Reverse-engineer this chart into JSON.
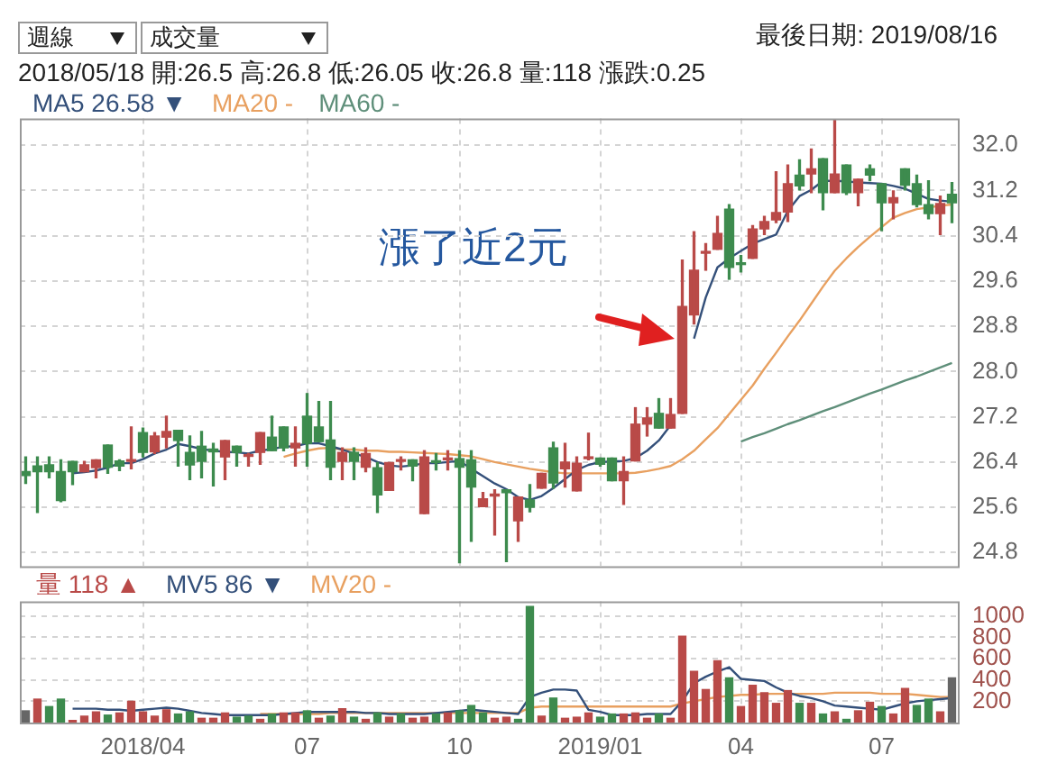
{
  "chart_data": [
    {
      "type": "candlestick",
      "annotations": [
        "週線",
        "成交量",
        "最後日期: 2019/08/16",
        "2018/05/18 開:26.5 高:26.8 低:26.05 收:26.8 量:118 漲跌:0.25",
        "漲了近2元"
      ],
      "categories": [
        null,
        null,
        null,
        null,
        null,
        null,
        null,
        null,
        null,
        null,
        "2018/04",
        null,
        null,
        null,
        null,
        null,
        null,
        null,
        null,
        null,
        null,
        null,
        null,
        null,
        "07",
        null,
        null,
        null,
        null,
        null,
        null,
        null,
        null,
        null,
        null,
        null,
        null,
        "10",
        null,
        null,
        null,
        null,
        null,
        null,
        null,
        null,
        null,
        null,
        null,
        "2019/01",
        null,
        null,
        null,
        null,
        null,
        null,
        null,
        null,
        null,
        null,
        null,
        "04",
        null,
        null,
        null,
        null,
        null,
        null,
        null,
        null,
        null,
        null,
        null,
        "07",
        null,
        null,
        null,
        null,
        null,
        null
      ],
      "ohlc": [
        [
          26.23,
          26.49,
          26.02,
          26.16
        ],
        [
          26.33,
          26.49,
          25.51,
          26.23
        ],
        [
          26.35,
          26.49,
          26.12,
          26.23
        ],
        [
          26.23,
          26.44,
          25.7,
          25.72
        ],
        [
          26.41,
          26.41,
          26.0,
          26.23
        ],
        [
          26.23,
          26.41,
          26.23,
          26.35
        ],
        [
          26.3,
          26.44,
          26.12,
          26.44
        ],
        [
          26.7,
          26.7,
          26.2,
          26.31
        ],
        [
          26.42,
          26.44,
          26.25,
          26.33
        ],
        [
          26.41,
          27.02,
          26.28,
          26.44
        ],
        [
          26.92,
          27.0,
          26.49,
          26.57
        ],
        [
          26.58,
          26.92,
          26.55,
          26.86
        ],
        [
          26.84,
          27.21,
          26.65,
          26.94
        ],
        [
          26.96,
          26.96,
          26.33,
          26.78
        ],
        [
          26.57,
          26.86,
          26.09,
          26.35
        ],
        [
          26.68,
          26.94,
          26.12,
          26.41
        ],
        [
          26.63,
          26.73,
          25.98,
          26.58
        ],
        [
          26.49,
          26.78,
          26.09,
          26.78
        ],
        [
          26.68,
          26.68,
          26.33,
          26.57
        ],
        [
          26.5,
          26.55,
          26.33,
          26.52
        ],
        [
          26.57,
          26.92,
          26.36,
          26.92
        ],
        [
          26.84,
          27.21,
          26.6,
          26.6
        ],
        [
          27.02,
          27.02,
          26.6,
          26.65
        ],
        [
          26.65,
          27.02,
          26.33,
          26.73
        ],
        [
          27.21,
          27.61,
          26.33,
          26.73
        ],
        [
          27.02,
          27.47,
          26.76,
          26.76
        ],
        [
          26.79,
          27.47,
          26.09,
          26.31
        ],
        [
          26.41,
          26.65,
          26.09,
          26.57
        ],
        [
          26.57,
          26.65,
          26.09,
          26.41
        ],
        [
          26.31,
          26.65,
          26.23,
          26.55
        ],
        [
          26.3,
          26.39,
          25.51,
          25.82
        ],
        [
          25.9,
          26.39,
          25.9,
          26.39
        ],
        [
          26.41,
          26.49,
          26.26,
          26.42
        ],
        [
          26.44,
          26.44,
          26.07,
          26.33
        ],
        [
          25.49,
          26.6,
          25.49,
          26.49
        ],
        [
          26.41,
          26.55,
          26.26,
          26.39
        ],
        [
          26.44,
          26.6,
          26.26,
          26.45
        ],
        [
          26.46,
          26.6,
          24.62,
          26.31
        ],
        [
          26.44,
          26.6,
          25.0,
          25.96
        ],
        [
          25.61,
          25.86,
          25.61,
          25.75
        ],
        [
          25.8,
          25.91,
          25.11,
          25.81
        ],
        [
          25.91,
          25.91,
          24.64,
          25.86
        ],
        [
          25.36,
          25.78,
          25.0,
          25.78
        ],
        [
          25.73,
          26.0,
          25.52,
          25.6
        ],
        [
          25.94,
          26.2,
          25.94,
          26.2
        ],
        [
          26.65,
          26.75,
          25.94,
          26.03
        ],
        [
          26.28,
          26.73,
          25.96,
          26.4
        ],
        [
          25.89,
          26.49,
          25.89,
          26.38
        ],
        [
          26.46,
          26.91,
          26.44,
          26.47
        ],
        [
          26.47,
          26.47,
          26.33,
          26.36
        ],
        [
          26.47,
          26.47,
          26.07,
          26.07
        ],
        [
          26.07,
          26.49,
          25.65,
          26.23
        ],
        [
          26.42,
          27.36,
          26.42,
          27.07
        ],
        [
          27.07,
          27.36,
          26.86,
          27.18
        ],
        [
          27.26,
          27.52,
          27.0,
          27.0
        ],
        [
          27.0,
          27.52,
          27.0,
          27.24
        ],
        [
          27.26,
          29.97,
          27.26,
          29.15
        ],
        [
          29.0,
          30.47,
          28.84,
          29.79
        ],
        [
          30.09,
          30.26,
          29.79,
          30.11
        ],
        [
          30.16,
          30.74,
          30.16,
          30.44
        ],
        [
          30.87,
          30.95,
          29.63,
          29.84
        ],
        [
          29.9,
          30.05,
          29.76,
          29.89
        ],
        [
          30.0,
          30.58,
          30.0,
          30.52
        ],
        [
          30.52,
          30.74,
          30.42,
          30.65
        ],
        [
          30.68,
          31.53,
          30.63,
          30.81
        ],
        [
          30.82,
          31.65,
          30.65,
          31.32
        ],
        [
          31.47,
          31.74,
          31.21,
          31.28
        ],
        [
          31.49,
          31.93,
          31.16,
          31.58
        ],
        [
          31.76,
          31.76,
          30.86,
          31.16
        ],
        [
          31.16,
          32.45,
          31.16,
          31.49
        ],
        [
          31.65,
          31.65,
          31.13,
          31.16
        ],
        [
          31.16,
          31.4,
          30.93,
          31.4
        ],
        [
          31.58,
          31.65,
          31.37,
          31.47
        ],
        [
          31.32,
          31.32,
          30.49,
          30.98
        ],
        [
          30.98,
          31.19,
          30.7,
          31.07
        ],
        [
          31.58,
          31.58,
          31.21,
          31.29
        ],
        [
          31.32,
          31.47,
          30.91,
          30.95
        ],
        [
          30.95,
          31.37,
          30.7,
          30.79
        ],
        [
          30.79,
          31.1,
          30.42,
          30.97
        ],
        [
          31.13,
          31.34,
          30.63,
          30.98
        ]
      ],
      "colors": [
        "#3d8b4e",
        "#3d8b4e",
        "#3d8b4e",
        "#3d8b4e",
        "#3d8b4e",
        "#b94a48",
        "#b94a48",
        "#3d8b4e",
        "#3d8b4e",
        "#b94a48",
        "#3d8b4e",
        "#b94a48",
        "#b94a48",
        "#3d8b4e",
        "#3d8b4e",
        "#3d8b4e",
        "#3d8b4e",
        "#b94a48",
        "#3d8b4e",
        "#b94a48",
        "#b94a48",
        "#3d8b4e",
        "#3d8b4e",
        "#b94a48",
        "#3d8b4e",
        "#3d8b4e",
        "#3d8b4e",
        "#b94a48",
        "#3d8b4e",
        "#b94a48",
        "#3d8b4e",
        "#b94a48",
        "#b94a48",
        "#3d8b4e",
        "#b94a48",
        "#3d8b4e",
        "#b94a48",
        "#3d8b4e",
        "#3d8b4e",
        "#b94a48",
        "#b94a48",
        "#3d8b4e",
        "#b94a48",
        "#3d8b4e",
        "#b94a48",
        "#3d8b4e",
        "#b94a48",
        "#b94a48",
        "#b94a48",
        "#3d8b4e",
        "#3d8b4e",
        "#b94a48",
        "#b94a48",
        "#b94a48",
        "#3d8b4e",
        "#b94a48",
        "#b94a48",
        "#b94a48",
        "#b94a48",
        "#b94a48",
        "#3d8b4e",
        "#3d8b4e",
        "#b94a48",
        "#b94a48",
        "#b94a48",
        "#b94a48",
        "#3d8b4e",
        "#b94a48",
        "#3d8b4e",
        "#b94a48",
        "#3d8b4e",
        "#b94a48",
        "#3d8b4e",
        "#3d8b4e",
        "#b94a48",
        "#3d8b4e",
        "#3d8b4e",
        "#3d8b4e",
        "#b94a48",
        "#3d8b4e"
      ],
      "series": [
        {
          "name": "MA5 26.58 ▼",
          "type": "line",
          "color": "#34507a",
          "values": [
            null,
            null,
            null,
            null,
            26.2,
            26.22,
            26.25,
            26.3,
            26.38,
            26.38,
            26.45,
            26.55,
            26.62,
            26.72,
            26.68,
            26.63,
            26.6,
            26.58,
            26.57,
            26.55,
            26.6,
            26.63,
            26.67,
            26.68,
            26.73,
            26.73,
            26.68,
            26.62,
            26.55,
            26.49,
            26.4,
            26.34,
            26.32,
            26.34,
            26.38,
            26.38,
            26.4,
            26.42,
            26.28,
            26.15,
            26.02,
            25.92,
            25.78,
            25.73,
            25.8,
            25.94,
            26.1,
            26.26,
            26.35,
            26.4,
            26.41,
            26.42,
            26.47,
            26.6,
            26.78,
            27.05,
            null,
            28.58,
            29.31,
            29.84,
            30.0,
            30.13,
            30.26,
            30.34,
            30.42,
            30.84,
            31.1,
            31.21,
            31.37,
            31.37,
            31.36,
            31.34,
            31.33,
            31.32,
            31.28,
            31.23,
            31.14,
            31.05,
            31.02,
            31.0
          ]
        },
        {
          "name": "MA20 -",
          "type": "line",
          "color": "#e8a060",
          "values": [
            null,
            null,
            null,
            null,
            null,
            null,
            null,
            null,
            null,
            null,
            null,
            null,
            null,
            null,
            null,
            null,
            null,
            null,
            null,
            null,
            null,
            null,
            26.49,
            26.55,
            26.6,
            26.64,
            26.65,
            26.62,
            26.62,
            26.6,
            26.6,
            26.58,
            26.58,
            26.57,
            26.56,
            26.55,
            26.54,
            26.52,
            26.5,
            26.45,
            26.4,
            26.36,
            26.32,
            26.28,
            26.25,
            26.22,
            26.2,
            26.2,
            26.2,
            26.2,
            26.2,
            26.2,
            26.21,
            26.24,
            26.28,
            26.33,
            26.45,
            26.6,
            26.8,
            27.0,
            27.25,
            27.5,
            27.75,
            28.05,
            28.33,
            28.62,
            28.9,
            29.2,
            29.5,
            29.78,
            30.0,
            30.2,
            30.38,
            30.55,
            30.72,
            30.8,
            30.87,
            30.9,
            30.93,
            30.95
          ]
        },
        {
          "name": "MA60 -",
          "type": "line",
          "color": "#5f8f7a",
          "values": [
            null,
            null,
            null,
            null,
            null,
            null,
            null,
            null,
            null,
            null,
            null,
            null,
            null,
            null,
            null,
            null,
            null,
            null,
            null,
            null,
            null,
            null,
            null,
            null,
            null,
            null,
            null,
            null,
            null,
            null,
            null,
            null,
            null,
            null,
            null,
            null,
            null,
            null,
            null,
            null,
            null,
            null,
            null,
            null,
            null,
            null,
            null,
            null,
            null,
            null,
            null,
            null,
            null,
            null,
            null,
            null,
            null,
            null,
            null,
            null,
            null,
            26.76,
            26.84,
            26.91,
            26.99,
            27.07,
            27.14,
            27.22,
            27.3,
            27.37,
            27.45,
            27.53,
            27.61,
            27.68,
            27.76,
            27.84,
            27.91,
            27.99,
            28.07,
            28.15
          ]
        }
      ],
      "ylim": [
        24.56,
        32.47
      ],
      "yticks": [
        {
          "value": 24.8,
          "label": "24.8"
        },
        {
          "value": 25.6,
          "label": "25.6"
        },
        {
          "value": 26.4,
          "label": "26.4"
        },
        {
          "value": 27.2,
          "label": "27.2"
        },
        {
          "value": 28,
          "label": "28.0"
        },
        {
          "value": 28.8,
          "label": "28.8"
        },
        {
          "value": 29.6,
          "label": "29.6"
        },
        {
          "value": 30.4,
          "label": "30.4"
        },
        {
          "value": 31.2,
          "label": "31.2"
        },
        {
          "value": 32,
          "label": "32.0"
        }
      ],
      "grid": true,
      "legend": "top left",
      "tick_labels": "y"
    },
    {
      "type": "bar",
      "categories": [
        null,
        null,
        null,
        null,
        null,
        null,
        null,
        null,
        null,
        null,
        "2018/04",
        null,
        null,
        null,
        null,
        null,
        null,
        null,
        null,
        null,
        null,
        null,
        null,
        null,
        "07",
        null,
        null,
        null,
        null,
        null,
        null,
        null,
        null,
        null,
        null,
        null,
        null,
        "10",
        null,
        null,
        null,
        null,
        null,
        null,
        null,
        null,
        null,
        null,
        null,
        "2019/01",
        null,
        null,
        null,
        null,
        null,
        null,
        null,
        null,
        null,
        null,
        null,
        "04",
        null,
        null,
        null,
        null,
        null,
        null,
        null,
        null,
        null,
        null,
        null,
        "07",
        null,
        null,
        null,
        null,
        null,
        null
      ],
      "series": [
        {
          "name": "量 118 ▲",
          "color": "#b94a48",
          "values": [
            110,
            220,
            150,
            220,
            20,
            60,
            100,
            70,
            90,
            200,
            100,
            60,
            120,
            80,
            100,
            40,
            40,
            90,
            50,
            60,
            30,
            80,
            90,
            90,
            110,
            40,
            60,
            130,
            50,
            30,
            90,
            50,
            80,
            40,
            50,
            80,
            90,
            110,
            160,
            90,
            40,
            50,
            30,
            1090,
            60,
            230,
            40,
            50,
            90,
            50,
            80,
            80,
            90,
            40,
            80,
            40,
            810,
            480,
            310,
            580,
            420,
            150,
            350,
            280,
            180,
            300,
            180,
            180,
            80,
            100,
            30,
            110,
            190,
            150,
            80,
            320,
            160,
            220,
            100,
            420
          ],
          "colors": [
            "#666666",
            "#b94a48",
            "#3d8b4e",
            "#3d8b4e",
            "#b94a48",
            "#b94a48",
            "#b94a48",
            "#3d8b4e",
            "#b94a48",
            "#b94a48",
            "#b94a48",
            "#b94a48",
            "#b94a48",
            "#3d8b4e",
            "#3d8b4e",
            "#b94a48",
            "#b94a48",
            "#b94a48",
            "#3d8b4e",
            "#3d8b4e",
            "#b94a48",
            "#3d8b4e",
            "#b94a48",
            "#b94a48",
            "#3d8b4e",
            "#b94a48",
            "#3d8b4e",
            "#b94a48",
            "#3d8b4e",
            "#b94a48",
            "#3d8b4e",
            "#b94a48",
            "#3d8b4e",
            "#b94a48",
            "#b94a48",
            "#3d8b4e",
            "#b94a48",
            "#3d8b4e",
            "#3d8b4e",
            "#3d8b4e",
            "#b94a48",
            "#b94a48",
            "#3d8b4e",
            "#3d8b4e",
            "#b94a48",
            "#3d8b4e",
            "#b94a48",
            "#b94a48",
            "#b94a48",
            "#3d8b4e",
            "#3d8b4e",
            "#b94a48",
            "#b94a48",
            "#b94a48",
            "#3d8b4e",
            "#b94a48",
            "#b94a48",
            "#b94a48",
            "#b94a48",
            "#b94a48",
            "#3d8b4e",
            "#b94a48",
            "#b94a48",
            "#b94a48",
            "#b94a48",
            "#b94a48",
            "#3d8b4e",
            "#b94a48",
            "#3d8b4e",
            "#b94a48",
            "#3d8b4e",
            "#b94a48",
            "#b94a48",
            "#3d8b4e",
            "#b94a48",
            "#b94a48",
            "#3d8b4e",
            "#3d8b4e",
            "#b94a48",
            "#666666"
          ]
        },
        {
          "name": "MV5 86 ▼",
          "type": "line",
          "color": "#34507a",
          "values": [
            null,
            null,
            null,
            null,
            130,
            130,
            130,
            120,
            120,
            110,
            120,
            130,
            140,
            130,
            110,
            90,
            80,
            70,
            70,
            70,
            70,
            70,
            80,
            90,
            100,
            100,
            100,
            100,
            100,
            90,
            90,
            80,
            80,
            80,
            80,
            90,
            100,
            110,
            120,
            110,
            100,
            90,
            80,
            240,
            280,
            310,
            310,
            300,
            120,
            100,
            70,
            70,
            70,
            80,
            80,
            80,
            200,
            370,
            430,
            480,
            520,
            410,
            400,
            390,
            330,
            280,
            250,
            230,
            200,
            160,
            150,
            140,
            130,
            120,
            150,
            180,
            200,
            210,
            220,
            230
          ]
        },
        {
          "name": "MV20 -",
          "type": "line",
          "color": "#e8a060",
          "values": [
            null,
            null,
            null,
            null,
            null,
            null,
            null,
            null,
            null,
            null,
            null,
            null,
            null,
            null,
            null,
            null,
            null,
            null,
            null,
            null,
            80,
            80,
            80,
            80,
            80,
            80,
            90,
            90,
            90,
            90,
            90,
            90,
            90,
            90,
            90,
            90,
            90,
            90,
            90,
            90,
            90,
            90,
            90,
            140,
            150,
            150,
            150,
            150,
            150,
            150,
            150,
            150,
            150,
            150,
            150,
            150,
            180,
            200,
            220,
            240,
            250,
            260,
            260,
            270,
            270,
            270,
            270,
            270,
            270,
            280,
            280,
            280,
            280,
            270,
            270,
            270,
            260,
            250,
            240,
            240
          ]
        }
      ],
      "ylim": [
        0,
        1137
      ],
      "yticks": [
        200,
        400,
        600,
        800,
        1000
      ],
      "grid": true,
      "legend": "top left"
    }
  ]
}
